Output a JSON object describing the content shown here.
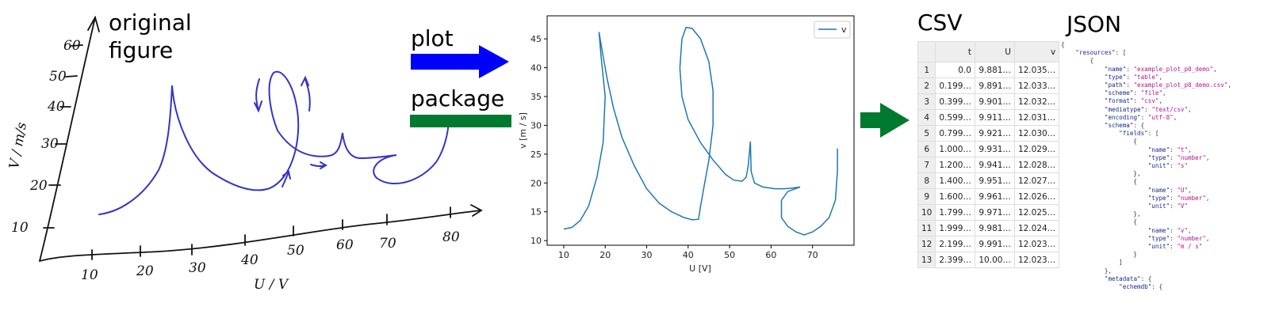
{
  "sketch": {
    "title": [
      "original",
      "figure"
    ],
    "x_label": "U / V",
    "y_label": "V / m/s",
    "x_ticks": [
      "10",
      "20",
      "30",
      "40",
      "50",
      "60",
      "70",
      "80"
    ],
    "y_ticks": [
      "60",
      "50",
      "40",
      "30",
      "20",
      "10"
    ]
  },
  "arrows": {
    "plot": "plot",
    "package": "package"
  },
  "chart_data": {
    "type": "line",
    "xlabel": "U [V]",
    "ylabel": "v [m / s]",
    "xlim": [
      6,
      80
    ],
    "ylim": [
      9.2,
      49
    ],
    "xticks": [
      10,
      20,
      30,
      40,
      50,
      60,
      70
    ],
    "yticks": [
      10,
      15,
      20,
      25,
      30,
      35,
      40,
      45
    ],
    "grid": false,
    "legend": "upper right",
    "series": [
      {
        "name": "v",
        "color": "#1f77b4",
        "x": [
          10,
          12,
          14,
          16,
          18,
          19.5,
          20,
          19,
          18.5,
          19,
          20.5,
          22,
          24,
          27,
          30,
          33,
          36,
          39,
          41,
          42.5,
          43,
          44,
          45,
          46,
          46,
          45,
          43,
          41,
          39.5,
          38.5,
          38,
          38.5,
          40,
          43,
          46,
          49,
          51,
          53,
          54,
          54.5,
          55,
          55.2,
          56,
          58,
          61,
          63,
          65,
          67,
          64,
          62.5,
          62.5,
          64,
          66,
          68,
          70,
          72,
          74,
          75.5,
          76,
          76
        ],
        "values": [
          12,
          12.3,
          13.5,
          16,
          21,
          27,
          35,
          42,
          46.2,
          44,
          38,
          33,
          28,
          23,
          19,
          16.5,
          15,
          14,
          13.6,
          13.7,
          16,
          20,
          24,
          30,
          36,
          41,
          45,
          46.8,
          47,
          45,
          40,
          35,
          31,
          27,
          24,
          21.5,
          20.5,
          20.3,
          21,
          23,
          27.2,
          22,
          20,
          19.3,
          19,
          19,
          19.1,
          19.3,
          18.5,
          17,
          14,
          12.5,
          11.5,
          11,
          11.5,
          12.5,
          14,
          17,
          22,
          26
        ]
      }
    ]
  },
  "csv": {
    "title": "CSV",
    "header": [
      "",
      "t",
      "U",
      "v"
    ],
    "rows": [
      [
        "1",
        "0.0",
        "9.881…",
        "12.035…"
      ],
      [
        "2",
        "0.199…",
        "9.891…",
        "12.033…"
      ],
      [
        "3",
        "0.399…",
        "9.901…",
        "12.032…"
      ],
      [
        "4",
        "0.599…",
        "9.911…",
        "12.031…"
      ],
      [
        "5",
        "0.799…",
        "9.921…",
        "12.030…"
      ],
      [
        "6",
        "1.000…",
        "9.931…",
        "12.029…"
      ],
      [
        "7",
        "1.200…",
        "9.941…",
        "12.028…"
      ],
      [
        "8",
        "1.400…",
        "9.951…",
        "12.027…"
      ],
      [
        "9",
        "1.600…",
        "9.961…",
        "12.026…"
      ],
      [
        "10",
        "1.799…",
        "9.971…",
        "12.025…"
      ],
      [
        "11",
        "1.999…",
        "9.981…",
        "12.024…"
      ],
      [
        "12",
        "2.199…",
        "9.991…",
        "12.023…"
      ],
      [
        "13",
        "2.399…",
        "10.00…",
        "12.023…"
      ]
    ]
  },
  "json": {
    "title": "JSON",
    "lines": [
      "{",
      "    \"resources\": [",
      "        {",
      "            \"name\": \"example_plot_p0_demo\",",
      "            \"type\": \"table\",",
      "            \"path\": \"example_plot_p0_demo.csv\",",
      "            \"scheme\": \"file\",",
      "            \"format\": \"csv\",",
      "            \"mediatype\": \"text/csv\",",
      "            \"encoding\": \"utf-8\",",
      "            \"schema\": {",
      "                \"fields\": [",
      "                    {",
      "                        \"name\": \"t\",",
      "                        \"type\": \"number\",",
      "                        \"unit\": \"s\"",
      "                    },",
      "                    {",
      "                        \"name\": \"U\",",
      "                        \"type\": \"number\",",
      "                        \"unit\": \"V\"",
      "                    },",
      "                    {",
      "                        \"name\": \"v\",",
      "                        \"type\": \"number\",",
      "                        \"unit\": \"m / s\"",
      "                    }",
      "                ]",
      "            },",
      "            \"metadata\": {",
      "                \"echemdb\": {"
    ]
  }
}
